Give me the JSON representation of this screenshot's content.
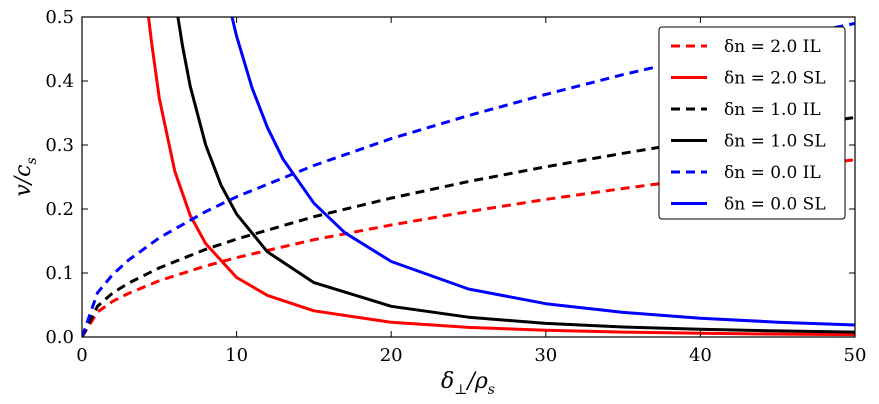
{
  "chart_data": {
    "type": "line",
    "xlabel": "δ⊥/ρs",
    "ylabel": "v/cs",
    "xlim": [
      0,
      50
    ],
    "ylim": [
      0,
      0.5
    ],
    "x_ticks": [
      "0",
      "10",
      "20",
      "30",
      "40",
      "50"
    ],
    "y_ticks": [
      "0.0",
      "0.1",
      "0.2",
      "0.3",
      "0.4",
      "0.5"
    ],
    "grid": false,
    "legend_position": "top-right",
    "series": [
      {
        "name": "δn = 2.0 IL",
        "color": "#ff0000",
        "style": "dashed",
        "x": [
          0,
          1,
          2,
          3,
          5,
          8,
          10,
          15,
          20,
          25,
          30,
          35,
          40,
          45,
          50
        ],
        "y": [
          0,
          0.039,
          0.056,
          0.068,
          0.088,
          0.111,
          0.124,
          0.152,
          0.175,
          0.196,
          0.215,
          0.232,
          0.248,
          0.263,
          0.277
        ]
      },
      {
        "name": "δn = 2.0 SL",
        "color": "#ff0000",
        "style": "solid",
        "x": [
          4.3,
          4.5,
          5,
          6,
          7,
          8,
          10,
          12,
          15,
          20,
          25,
          30,
          35,
          40,
          45,
          50
        ],
        "y": [
          0.5,
          0.46,
          0.373,
          0.259,
          0.19,
          0.146,
          0.093,
          0.065,
          0.041,
          0.023,
          0.015,
          0.0104,
          0.0076,
          0.0058,
          0.0046,
          0.0037
        ]
      },
      {
        "name": "δn = 1.0 IL",
        "color": "#000000",
        "style": "dashed",
        "x": [
          0,
          1,
          2,
          3,
          5,
          8,
          10,
          15,
          20,
          25,
          30,
          35,
          40,
          45,
          50
        ],
        "y": [
          0,
          0.048,
          0.069,
          0.084,
          0.108,
          0.137,
          0.153,
          0.188,
          0.217,
          0.243,
          0.266,
          0.287,
          0.307,
          0.326,
          0.343
        ]
      },
      {
        "name": "δn = 1.0 SL",
        "color": "#000000",
        "style": "solid",
        "x": [
          6.2,
          6.5,
          7,
          8,
          9,
          10,
          12,
          15,
          20,
          25,
          30,
          35,
          40,
          45,
          50
        ],
        "y": [
          0.5,
          0.455,
          0.392,
          0.3,
          0.237,
          0.192,
          0.133,
          0.085,
          0.048,
          0.031,
          0.0213,
          0.0157,
          0.012,
          0.0095,
          0.0077
        ]
      },
      {
        "name": "δn = 0.0 IL",
        "color": "#0000ff",
        "style": "dashed",
        "x": [
          0,
          1,
          2,
          3,
          5,
          8,
          10,
          15,
          20,
          25,
          30,
          35,
          40,
          45,
          50
        ],
        "y": [
          0,
          0.069,
          0.098,
          0.12,
          0.155,
          0.196,
          0.219,
          0.268,
          0.31,
          0.346,
          0.379,
          0.41,
          0.438,
          0.465,
          0.49
        ]
      },
      {
        "name": "δn = 0.0 SL",
        "color": "#0000ff",
        "style": "solid",
        "x": [
          9.7,
          10,
          11,
          12,
          13,
          15,
          17,
          20,
          25,
          30,
          35,
          40,
          45,
          50
        ],
        "y": [
          0.5,
          0.47,
          0.389,
          0.327,
          0.278,
          0.209,
          0.163,
          0.118,
          0.075,
          0.052,
          0.0384,
          0.0294,
          0.0232,
          0.0188
        ]
      }
    ]
  }
}
